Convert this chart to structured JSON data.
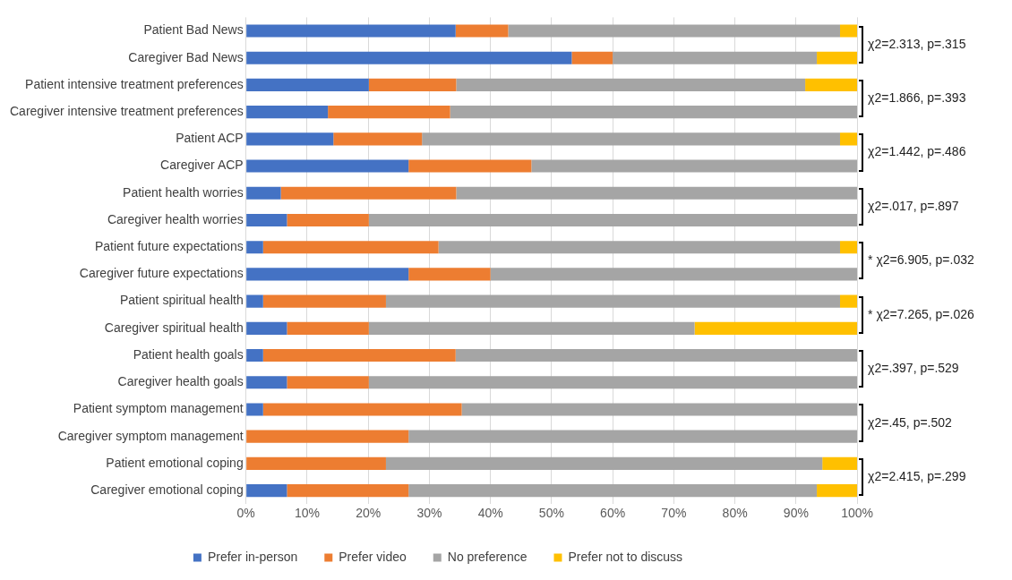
{
  "chart_data": {
    "type": "bar",
    "orientation": "horizontal",
    "stacked": true,
    "categories": [
      "Patient Bad News",
      "Caregiver Bad News",
      "Patient intensive treatment preferences",
      "Caregiver intensive treatment preferences",
      "Patient ACP",
      "Caregiver ACP",
      "Patient health worries",
      "Caregiver health worries",
      "Patient future expectations",
      "Caregiver future expectations",
      "Patient spiritual health",
      "Caregiver spiritual health",
      "Patient health goals",
      "Caregiver health goals",
      "Patient symptom management",
      "Caregiver symptom management",
      "Patient emotional coping",
      "Caregiver emotional coping"
    ],
    "series": [
      {
        "name": "Prefer in-person",
        "color": "#4472c4",
        "values": [
          34.3,
          53.3,
          20.1,
          13.4,
          14.3,
          26.6,
          5.7,
          6.7,
          2.8,
          26.6,
          2.8,
          6.7,
          2.8,
          6.7,
          2.8,
          0,
          0,
          6.7
        ]
      },
      {
        "name": "Prefer video",
        "color": "#ed7d31",
        "values": [
          8.6,
          6.7,
          14.3,
          20,
          14.5,
          20.1,
          28.7,
          13.4,
          28.7,
          13.4,
          20.1,
          13.4,
          31.5,
          13.4,
          32.5,
          26.6,
          22.9,
          19.9
        ]
      },
      {
        "name": "No preference",
        "color": "#a5a5a5",
        "values": [
          54.3,
          33.4,
          57.1,
          66.6,
          68.4,
          53.3,
          65.6,
          79.9,
          65.7,
          60,
          74.3,
          53.3,
          65.7,
          79.9,
          64.7,
          73.4,
          71.4,
          66.8
        ]
      },
      {
        "name": "Prefer not to discuss",
        "color": "#ffc000",
        "values": [
          2.8,
          6.6,
          8.5,
          0,
          2.8,
          0,
          0,
          0,
          2.8,
          0,
          2.8,
          26.6,
          0,
          0,
          0,
          0,
          5.7,
          6.6
        ]
      }
    ],
    "xlim": [
      0,
      100
    ],
    "xticks": [
      {
        "value": 0,
        "label": "0%"
      },
      {
        "value": 10,
        "label": "10%"
      },
      {
        "value": 20,
        "label": "20%"
      },
      {
        "value": 30,
        "label": "30%"
      },
      {
        "value": 40,
        "label": "40%"
      },
      {
        "value": 50,
        "label": "50%"
      },
      {
        "value": 60,
        "label": "60%"
      },
      {
        "value": 70,
        "label": "70%"
      },
      {
        "value": 80,
        "label": "80%"
      },
      {
        "value": 90,
        "label": "90%"
      },
      {
        "value": 100,
        "label": "100%"
      }
    ],
    "grid": "x",
    "legend": "bottom",
    "annotations": [
      "χ2=2.313, p=.315",
      "χ2=1.866, p=.393",
      "χ2=1.442, p=.486",
      "χ2=.017, p=.897",
      "* χ2=6.905, p=.032",
      "* χ2=7.265, p=.026",
      "χ2=.397, p=.529",
      "χ2=.45, p=.502",
      "χ2=2.415, p=.299"
    ]
  }
}
